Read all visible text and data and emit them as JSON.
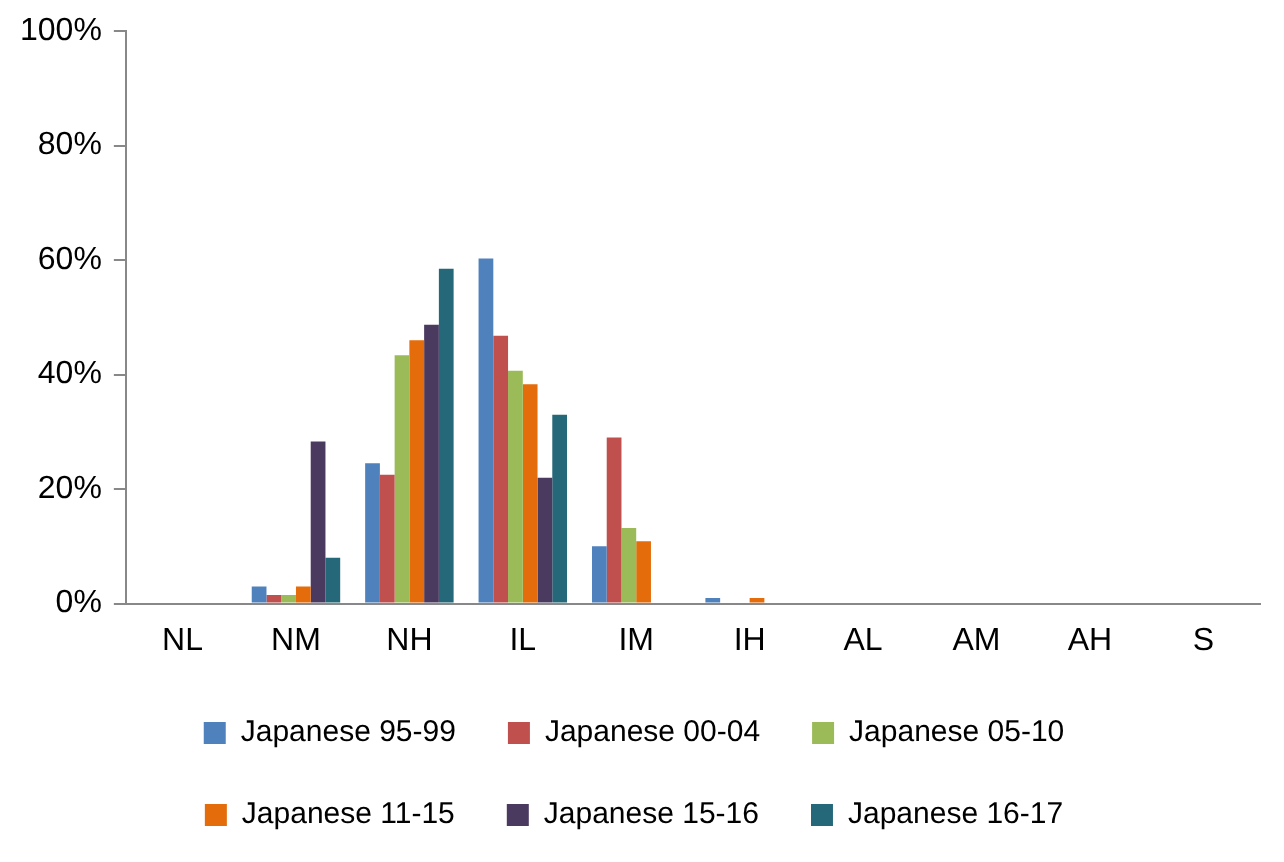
{
  "chart_data": {
    "type": "bar",
    "categories": [
      "NL",
      "NM",
      "NH",
      "IL",
      "IM",
      "IH",
      "AL",
      "AM",
      "AH",
      "S"
    ],
    "series": [
      {
        "name": "Japanese 95-99",
        "color": "#4f81bd",
        "values": [
          0,
          3,
          24.5,
          60.3,
          10,
          1,
          0,
          0,
          0,
          0
        ]
      },
      {
        "name": "Japanese 00-04",
        "color": "#c0504d",
        "values": [
          0,
          1.5,
          22.5,
          46.8,
          29,
          0,
          0,
          0,
          0,
          0
        ]
      },
      {
        "name": "Japanese 05-10",
        "color": "#9bbb59",
        "values": [
          0,
          1.5,
          43.4,
          40.7,
          13.2,
          0,
          0,
          0,
          0,
          0
        ]
      },
      {
        "name": "Japanese 11-15",
        "color": "#e46c0a",
        "values": [
          0,
          3,
          46,
          38.3,
          10.9,
          1,
          0,
          0,
          0,
          0
        ]
      },
      {
        "name": "Japanese 15-16",
        "color": "#4a3a60",
        "values": [
          0,
          28.3,
          48.7,
          22,
          0,
          0,
          0,
          0,
          0,
          0
        ]
      },
      {
        "name": "Japanese 16-17",
        "color": "#25687a",
        "values": [
          0,
          8,
          58.5,
          33,
          0,
          0,
          0,
          0,
          0,
          0
        ]
      }
    ],
    "ylim": [
      0,
      100
    ],
    "yticks": [
      {
        "value": 0,
        "label": "0%"
      },
      {
        "value": 20,
        "label": "20%"
      },
      {
        "value": 40,
        "label": "40%"
      },
      {
        "value": 60,
        "label": "60%"
      },
      {
        "value": 80,
        "label": "80%"
      },
      {
        "value": 100,
        "label": "100%"
      }
    ],
    "grid": false,
    "legend": "bottom"
  }
}
